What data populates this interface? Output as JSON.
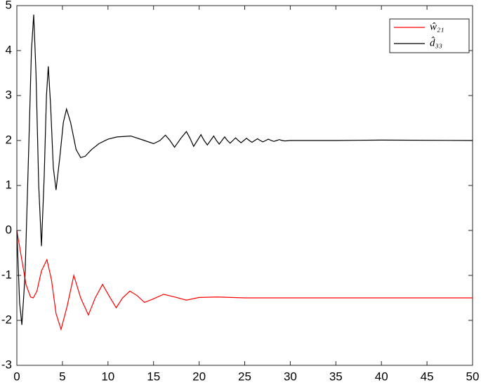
{
  "chart_data": {
    "type": "line",
    "xlim": [
      0,
      50
    ],
    "xticks": [
      0,
      5,
      10,
      15,
      20,
      25,
      30,
      35,
      40,
      45,
      50
    ],
    "ylim": [
      -3,
      5
    ],
    "yticks": [
      -3,
      -2,
      -1,
      0,
      1,
      2,
      3,
      4,
      5
    ],
    "legend": "upper right",
    "series": [
      {
        "name": "ŵ₂₁",
        "color": "#ff0000",
        "x": [
          0,
          0.5,
          1,
          1.5,
          1.8,
          2.2,
          2.7,
          3.3,
          3.8,
          4.3,
          4.85,
          5.5,
          6.25,
          7,
          7.85,
          8.6,
          9.4,
          10.1,
          10.9,
          11.6,
          12.4,
          13.2,
          14,
          15,
          16.1,
          17.3,
          18.6,
          20,
          22,
          25,
          30,
          40,
          50
        ],
        "values": [
          0,
          -0.6,
          -1.2,
          -1.48,
          -1.5,
          -1.35,
          -0.9,
          -0.65,
          -1.1,
          -1.85,
          -2.2,
          -1.7,
          -1.0,
          -1.5,
          -1.88,
          -1.5,
          -1.2,
          -1.45,
          -1.72,
          -1.5,
          -1.35,
          -1.45,
          -1.6,
          -1.52,
          -1.42,
          -1.48,
          -1.55,
          -1.49,
          -1.48,
          -1.5,
          -1.5,
          -1.5,
          -1.5
        ]
      },
      {
        "name": "d̂₃₃",
        "color": "#000000",
        "x": [
          0,
          0.3,
          0.55,
          0.9,
          1.3,
          1.6,
          1.85,
          2.1,
          2.4,
          2.7,
          3.0,
          3.25,
          3.45,
          3.7,
          4.0,
          4.3,
          4.7,
          5.1,
          5.45,
          5.9,
          6.5,
          7.0,
          7.5,
          8.2,
          9,
          10,
          11,
          12.5,
          14,
          15,
          15.7,
          16.3,
          16.8,
          17.3,
          18,
          18.6,
          19,
          19.4,
          19.8,
          20.2,
          20.55,
          20.9,
          21.25,
          21.6,
          21.9,
          22.2,
          22.5,
          22.8,
          23.1,
          23.4,
          23.7,
          24,
          24.3,
          24.6,
          24.9,
          25.2,
          25.5,
          25.8,
          26.1,
          26.4,
          26.7,
          27,
          27.3,
          27.6,
          27.9,
          28.2,
          28.5,
          28.8,
          29.1,
          29.4,
          30,
          35,
          40,
          50
        ],
        "values": [
          0,
          -1.6,
          -2.1,
          -1,
          1.8,
          4,
          4.8,
          3.5,
          1,
          -0.35,
          1.2,
          3.0,
          3.65,
          2.8,
          1.4,
          0.9,
          1.6,
          2.4,
          2.7,
          2.4,
          1.8,
          1.62,
          1.65,
          1.8,
          1.93,
          2.03,
          2.08,
          2.1,
          2.0,
          1.93,
          2.0,
          2.12,
          2.0,
          1.85,
          2.05,
          2.2,
          2.05,
          1.87,
          2.0,
          2.13,
          2.0,
          1.9,
          2.0,
          2.1,
          2.0,
          1.92,
          2.0,
          2.08,
          2.0,
          1.94,
          2.0,
          2.06,
          2.0,
          1.95,
          2.0,
          2.05,
          2.0,
          1.96,
          2.0,
          2.04,
          2.0,
          1.97,
          2.0,
          2.03,
          2.0,
          1.98,
          2.0,
          2.02,
          2.0,
          1.99,
          2.0,
          2.0,
          2.01,
          2.0
        ]
      }
    ]
  }
}
